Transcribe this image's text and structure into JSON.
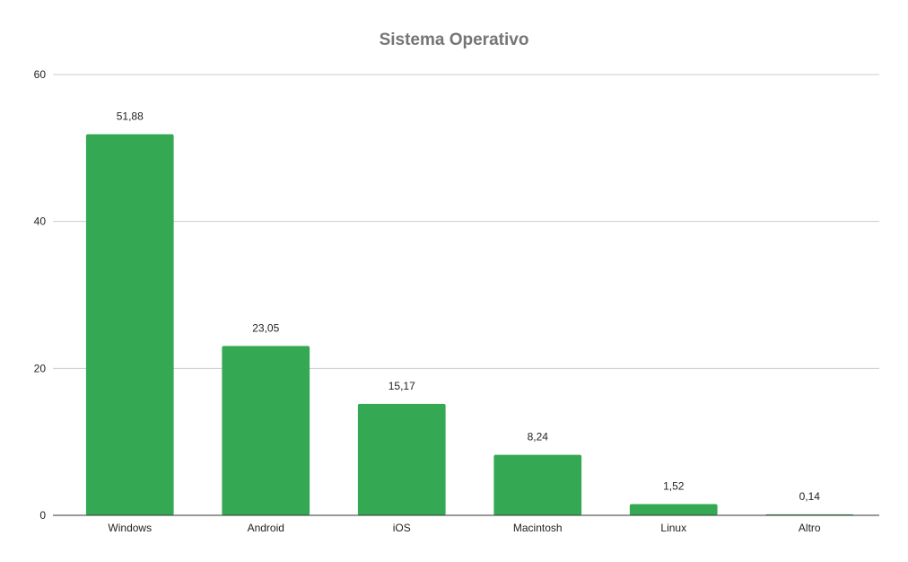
{
  "chart_data": {
    "type": "bar",
    "title": "Sistema Operativo",
    "categories": [
      "Windows",
      "Android",
      "iOS",
      "Macintosh",
      "Linux",
      "Altro"
    ],
    "values": [
      51.88,
      23.05,
      15.17,
      8.24,
      1.52,
      0.14
    ],
    "data_labels": [
      "51,88",
      "23,05",
      "15,17",
      "8,24",
      "1,52",
      "0,14"
    ],
    "y_ticks": [
      0,
      20,
      40,
      60
    ],
    "ylim": [
      0,
      60
    ],
    "grid": true,
    "legend": "none",
    "bar_color": "#34a853"
  }
}
